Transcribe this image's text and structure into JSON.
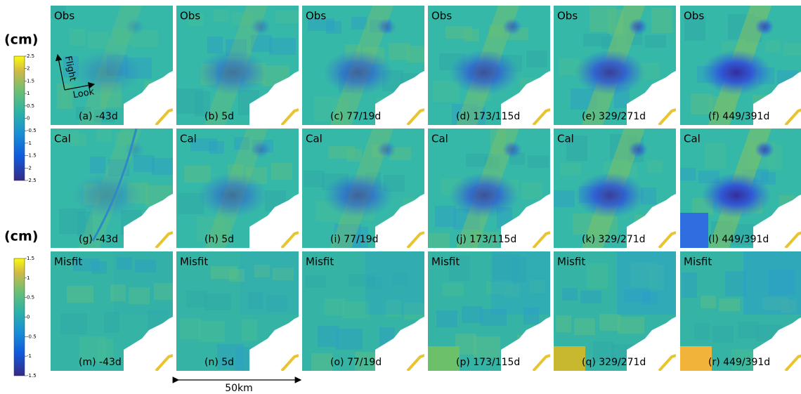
{
  "colorbars": [
    {
      "unit": "(cm)",
      "lim": [
        -2.5,
        2.5
      ],
      "ticks": [
        2.5,
        2,
        1.5,
        1,
        0.5,
        0,
        -0.5,
        -1,
        -1.5,
        -2,
        -2.5
      ]
    },
    {
      "unit": "(cm)",
      "lim": [
        -1.5,
        1.5
      ],
      "ticks": [
        1.5,
        1,
        0.5,
        0,
        -0.5,
        -1,
        -1.5
      ]
    }
  ],
  "arrows": {
    "flight": "Flight",
    "look": "Look"
  },
  "scale_bar": "50km",
  "panels": [
    {
      "tag": "Obs",
      "caption": "(a) -43d"
    },
    {
      "tag": "Obs",
      "caption": "(b) 5d"
    },
    {
      "tag": "Obs",
      "caption": "(c) 77/19d"
    },
    {
      "tag": "Obs",
      "caption": "(d) 173/115d"
    },
    {
      "tag": "Obs",
      "caption": "(e) 329/271d"
    },
    {
      "tag": "Obs",
      "caption": "(f) 449/391d"
    },
    {
      "tag": "Cal",
      "caption": "(g) -43d"
    },
    {
      "tag": "Cal",
      "caption": "(h) 5d"
    },
    {
      "tag": "Cal",
      "caption": "(i) 77/19d"
    },
    {
      "tag": "Cal",
      "caption": "(j) 173/115d"
    },
    {
      "tag": "Cal",
      "caption": "(k) 329/271d"
    },
    {
      "tag": "Cal",
      "caption": "(l) 449/391d"
    },
    {
      "tag": "Misfit",
      "caption": "(m) -43d"
    },
    {
      "tag": "Misfit",
      "caption": "(n) 5d"
    },
    {
      "tag": "Misfit",
      "caption": "(o) 77/19d"
    },
    {
      "tag": "Misfit",
      "caption": "(p) 173/115d"
    },
    {
      "tag": "Misfit",
      "caption": "(q) 329/271d"
    },
    {
      "tag": "Misfit",
      "caption": "(r) 449/391d"
    }
  ]
}
